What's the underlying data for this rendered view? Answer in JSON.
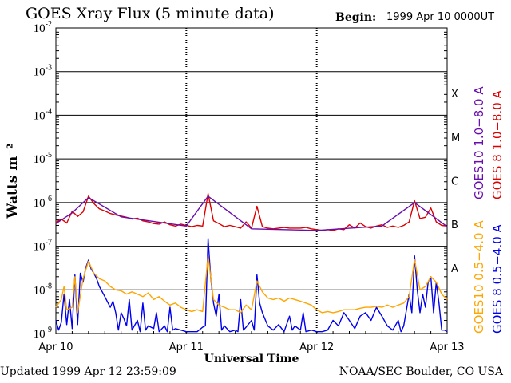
{
  "header": {
    "title": "GOES Xray Flux (5 minute data)",
    "begin_label": "Begin:",
    "begin_value": "1999 Apr 10 0000UT"
  },
  "footer": {
    "updated": "Updated 1999 Apr 12 23:59:09",
    "source": "NOAA/SEC Boulder, CO USA"
  },
  "chart_data": {
    "type": "line",
    "title": "GOES Xray Flux (5 minute data)",
    "xlabel": "Universal Time",
    "ylabel": "Watts m⁻²",
    "yscale": "log",
    "ylim": [
      1e-09,
      0.01
    ],
    "xlim": [
      0,
      72
    ],
    "x_unit": "hours since 1999 Apr 10 00:00 UT",
    "x_ticks": [
      {
        "x": 0,
        "label": "Apr 10"
      },
      {
        "x": 24,
        "label": "Apr 11"
      },
      {
        "x": 48,
        "label": "Apr 12"
      },
      {
        "x": 72,
        "label": "Apr 13"
      }
    ],
    "y_ticks": [
      {
        "exp": -2,
        "label": "10",
        "sup": "-2"
      },
      {
        "exp": -3,
        "label": "10",
        "sup": "-3"
      },
      {
        "exp": -4,
        "label": "10",
        "sup": "-4"
      },
      {
        "exp": -5,
        "label": "10",
        "sup": "-5"
      },
      {
        "exp": -6,
        "label": "10",
        "sup": "-6"
      },
      {
        "exp": -7,
        "label": "10",
        "sup": "-7"
      },
      {
        "exp": -8,
        "label": "10",
        "sup": "-8"
      },
      {
        "exp": -9,
        "label": "10",
        "sup": "-9"
      }
    ],
    "flare_classes": [
      {
        "label": "X",
        "exp": -3.5
      },
      {
        "label": "M",
        "exp": -4.5
      },
      {
        "label": "C",
        "exp": -5.5
      },
      {
        "label": "B",
        "exp": -6.5
      },
      {
        "label": "A",
        "exp": -7.5
      }
    ],
    "grid": true,
    "legend_position": "right (vertical labels)",
    "series": [
      {
        "name": "GOES 8 1.0−8.0 A",
        "color": "#dd0000",
        "points": [
          [
            0,
            3.5e-07
          ],
          [
            1,
            4.2e-07
          ],
          [
            2,
            3.4e-07
          ],
          [
            3,
            6.3e-07
          ],
          [
            4,
            4.8e-07
          ],
          [
            5,
            6.1e-07
          ],
          [
            6,
            1.4e-06
          ],
          [
            7,
            9.5e-07
          ],
          [
            8,
            7.2e-07
          ],
          [
            9,
            6.4e-07
          ],
          [
            10,
            5.6e-07
          ],
          [
            11,
            5.2e-07
          ],
          [
            12,
            4.9e-07
          ],
          [
            13,
            4.6e-07
          ],
          [
            14,
            4.2e-07
          ],
          [
            15,
            4.4e-07
          ],
          [
            16,
            3.8e-07
          ],
          [
            17,
            3.6e-07
          ],
          [
            18,
            3.3e-07
          ],
          [
            19,
            3.2e-07
          ],
          [
            20,
            3.6e-07
          ],
          [
            21,
            3.1e-07
          ],
          [
            22,
            2.9e-07
          ],
          [
            23,
            3.2e-07
          ],
          [
            24,
            3e-07
          ],
          [
            25,
            2.8e-07
          ],
          [
            26,
            3e-07
          ],
          [
            27,
            2.9e-07
          ],
          [
            28,
            1.6e-06
          ],
          [
            29,
            3.8e-07
          ],
          [
            30,
            3.3e-07
          ],
          [
            31,
            2.8e-07
          ],
          [
            32,
            3e-07
          ],
          [
            33,
            2.8e-07
          ],
          [
            34,
            2.6e-07
          ],
          [
            35,
            3.6e-07
          ],
          [
            36,
            2.6e-07
          ],
          [
            37,
            8.2e-07
          ],
          [
            38,
            2.8e-07
          ],
          [
            39,
            2.6e-07
          ],
          [
            40,
            2.5e-07
          ],
          [
            41,
            2.6e-07
          ],
          [
            42,
            2.7e-07
          ],
          [
            43,
            2.6e-07
          ],
          [
            44,
            2.6e-07
          ],
          [
            45,
            2.6e-07
          ],
          [
            46,
            2.7e-07
          ],
          [
            47,
            2.5e-07
          ],
          [
            48,
            2.4e-07
          ],
          [
            49,
            2.3e-07
          ],
          [
            50,
            2.4e-07
          ],
          [
            51,
            2.3e-07
          ],
          [
            52,
            2.5e-07
          ],
          [
            53,
            2.4e-07
          ],
          [
            54,
            3.1e-07
          ],
          [
            55,
            2.6e-07
          ],
          [
            56,
            3.4e-07
          ],
          [
            57,
            2.8e-07
          ],
          [
            58,
            2.6e-07
          ],
          [
            59,
            2.9e-07
          ],
          [
            60,
            3.1e-07
          ],
          [
            61,
            2.7e-07
          ],
          [
            62,
            2.9e-07
          ],
          [
            63,
            2.7e-07
          ],
          [
            64,
            3e-07
          ],
          [
            65,
            3.6e-07
          ],
          [
            66,
            1.1e-06
          ],
          [
            67,
            4.3e-07
          ],
          [
            68,
            4.6e-07
          ],
          [
            69,
            7.5e-07
          ],
          [
            70,
            3.6e-07
          ],
          [
            71,
            3e-07
          ],
          [
            72,
            2.9e-07
          ]
        ]
      },
      {
        "name": "GOES10 1.0−8.0 A",
        "color": "#6a0dad",
        "points": [
          [
            0,
            3.3e-07
          ],
          [
            3,
            5.8e-07
          ],
          [
            6,
            1.3e-06
          ],
          [
            12,
            4.7e-07
          ],
          [
            24,
            2.9e-07
          ],
          [
            28,
            1.4e-06
          ],
          [
            36,
            2.5e-07
          ],
          [
            48,
            2.3e-07
          ],
          [
            60,
            2.9e-07
          ],
          [
            66,
            1e-06
          ],
          [
            72,
            2.8e-07
          ]
        ]
      },
      {
        "name": "GOES 8 0.5−4.0 A",
        "color": "#0000ee",
        "points": [
          [
            0,
            2e-09
          ],
          [
            0.5,
            1.2e-09
          ],
          [
            1,
            1.8e-09
          ],
          [
            1.5,
            8e-09
          ],
          [
            2,
            1.6e-09
          ],
          [
            2.5,
            6e-09
          ],
          [
            3,
            1.3e-09
          ],
          [
            3.5,
            2.2e-08
          ],
          [
            4,
            1.6e-09
          ],
          [
            4.5,
            2.4e-08
          ],
          [
            5,
            1.5e-08
          ],
          [
            5.5,
            3.2e-08
          ],
          [
            6,
            4.8e-08
          ],
          [
            6.5,
            3e-08
          ],
          [
            7,
            2.4e-08
          ],
          [
            7.5,
            1.8e-08
          ],
          [
            8,
            1.2e-08
          ],
          [
            9,
            7e-09
          ],
          [
            10,
            4e-09
          ],
          [
            10.5,
            5.5e-09
          ],
          [
            11,
            3e-09
          ],
          [
            11.5,
            1.2e-09
          ],
          [
            12,
            3e-09
          ],
          [
            12.5,
            2.2e-09
          ],
          [
            13,
            1.5e-09
          ],
          [
            13.5,
            6e-09
          ],
          [
            14,
            1.2e-09
          ],
          [
            15,
            2e-09
          ],
          [
            15.5,
            1.1e-09
          ],
          [
            16,
            5e-09
          ],
          [
            16.5,
            1.2e-09
          ],
          [
            17,
            1.5e-09
          ],
          [
            18,
            1.3e-09
          ],
          [
            18.5,
            3e-09
          ],
          [
            19,
            1.1e-09
          ],
          [
            20,
            1.5e-09
          ],
          [
            20.5,
            1.1e-09
          ],
          [
            21,
            4e-09
          ],
          [
            21.5,
            1.2e-09
          ],
          [
            22,
            1.3e-09
          ],
          [
            23,
            1.2e-09
          ],
          [
            24,
            1.1e-09
          ],
          [
            25,
            1.1e-09
          ],
          [
            26,
            1.1e-09
          ],
          [
            27,
            1.4e-09
          ],
          [
            27.5,
            1.5e-09
          ],
          [
            28,
            1.5e-07
          ],
          [
            28.5,
            1.8e-08
          ],
          [
            29,
            5e-09
          ],
          [
            29.5,
            2.5e-09
          ],
          [
            30,
            8e-09
          ],
          [
            30.5,
            1.2e-09
          ],
          [
            31,
            1.5e-09
          ],
          [
            32,
            1.1e-09
          ],
          [
            33,
            1.2e-09
          ],
          [
            33.5,
            1.1e-09
          ],
          [
            34,
            6e-09
          ],
          [
            34.5,
            1.2e-09
          ],
          [
            35,
            1.4e-09
          ],
          [
            36,
            2e-09
          ],
          [
            36.5,
            1.2e-09
          ],
          [
            37,
            2.2e-08
          ],
          [
            37.5,
            5e-09
          ],
          [
            38,
            3e-09
          ],
          [
            39,
            1.5e-09
          ],
          [
            40,
            1.2e-09
          ],
          [
            41,
            1.6e-09
          ],
          [
            42,
            1.1e-09
          ],
          [
            43,
            2.5e-09
          ],
          [
            43.5,
            1.2e-09
          ],
          [
            44,
            1.5e-09
          ],
          [
            45,
            1.2e-09
          ],
          [
            45.5,
            3e-09
          ],
          [
            46,
            1.1e-09
          ],
          [
            47,
            1.2e-09
          ],
          [
            48,
            1.1e-09
          ],
          [
            49,
            1.1e-09
          ],
          [
            50,
            1.2e-09
          ],
          [
            51,
            2e-09
          ],
          [
            52,
            1.5e-09
          ],
          [
            53,
            3e-09
          ],
          [
            54,
            2e-09
          ],
          [
            55,
            1.3e-09
          ],
          [
            56,
            2.5e-09
          ],
          [
            57,
            3e-09
          ],
          [
            58,
            2e-09
          ],
          [
            59,
            4e-09
          ],
          [
            60,
            2.5e-09
          ],
          [
            61,
            1.5e-09
          ],
          [
            62,
            1.2e-09
          ],
          [
            63,
            2e-09
          ],
          [
            63.5,
            1.1e-09
          ],
          [
            64,
            1.5e-09
          ],
          [
            65,
            8e-09
          ],
          [
            65.5,
            3e-09
          ],
          [
            66,
            6e-08
          ],
          [
            66.5,
            1e-08
          ],
          [
            67,
            3e-09
          ],
          [
            67.5,
            8e-09
          ],
          [
            68,
            4e-09
          ],
          [
            68.5,
            1.5e-08
          ],
          [
            69,
            2e-08
          ],
          [
            69.5,
            3e-09
          ],
          [
            70,
            1.5e-08
          ],
          [
            70.5,
            5e-09
          ],
          [
            71,
            1.2e-09
          ],
          [
            71.5,
            1.2e-09
          ],
          [
            72,
            1.1e-09
          ]
        ]
      },
      {
        "name": "GOES10 0.5−4.0 A",
        "color": "#ffa500",
        "points": [
          [
            0,
            4e-09
          ],
          [
            1,
            6e-09
          ],
          [
            1.5,
            1.2e-08
          ],
          [
            2,
            3.5e-09
          ],
          [
            3,
            4e-09
          ],
          [
            3.5,
            2e-08
          ],
          [
            4,
            3e-09
          ],
          [
            5,
            1.8e-08
          ],
          [
            6,
            4.5e-08
          ],
          [
            7,
            2.4e-08
          ],
          [
            8,
            1.8e-08
          ],
          [
            9,
            1.6e-08
          ],
          [
            10,
            1.2e-08
          ],
          [
            11,
            1e-08
          ],
          [
            12,
            9.5e-09
          ],
          [
            13,
            8e-09
          ],
          [
            14,
            9e-09
          ],
          [
            15,
            8e-09
          ],
          [
            16,
            7e-09
          ],
          [
            17,
            8.5e-09
          ],
          [
            18,
            6e-09
          ],
          [
            19,
            7e-09
          ],
          [
            20,
            5.5e-09
          ],
          [
            21,
            4.5e-09
          ],
          [
            22,
            5e-09
          ],
          [
            23,
            4e-09
          ],
          [
            24,
            3.5e-09
          ],
          [
            25,
            3.2e-09
          ],
          [
            26,
            3.5e-09
          ],
          [
            27,
            3.2e-09
          ],
          [
            28,
            6e-08
          ],
          [
            29,
            6e-09
          ],
          [
            30,
            4.5e-09
          ],
          [
            31,
            4e-09
          ],
          [
            32,
            3.5e-09
          ],
          [
            33,
            3.5e-09
          ],
          [
            34,
            3e-09
          ],
          [
            35,
            4.5e-09
          ],
          [
            36,
            3.5e-09
          ],
          [
            37,
            1.6e-08
          ],
          [
            38,
            9e-09
          ],
          [
            39,
            6.5e-09
          ],
          [
            40,
            6e-09
          ],
          [
            41,
            6.5e-09
          ],
          [
            42,
            5.5e-09
          ],
          [
            43,
            6.5e-09
          ],
          [
            44,
            6e-09
          ],
          [
            45,
            5.5e-09
          ],
          [
            46,
            5e-09
          ],
          [
            47,
            4.5e-09
          ],
          [
            48,
            3.5e-09
          ],
          [
            49,
            3e-09
          ],
          [
            50,
            3.2e-09
          ],
          [
            51,
            3e-09
          ],
          [
            52,
            3.2e-09
          ],
          [
            53,
            3.5e-09
          ],
          [
            54,
            3.5e-09
          ],
          [
            55,
            3.5e-09
          ],
          [
            56,
            3.8e-09
          ],
          [
            57,
            4e-09
          ],
          [
            58,
            4e-09
          ],
          [
            59,
            4.2e-09
          ],
          [
            60,
            4e-09
          ],
          [
            61,
            4.5e-09
          ],
          [
            62,
            4e-09
          ],
          [
            63,
            4.5e-09
          ],
          [
            64,
            5e-09
          ],
          [
            65,
            7e-09
          ],
          [
            66,
            5e-08
          ],
          [
            67,
            1e-08
          ],
          [
            68,
            1.2e-08
          ],
          [
            69,
            2e-08
          ],
          [
            70,
            1.5e-08
          ],
          [
            71,
            8e-09
          ],
          [
            72,
            6e-09
          ]
        ]
      }
    ],
    "right_labels": [
      {
        "text": "GOES10 1.0−8.0 A",
        "color": "#6a0dad"
      },
      {
        "text": "GOES 8 1.0−8.0 A",
        "color": "#dd0000"
      },
      {
        "text": "GOES10 0.5−4.0 A",
        "color": "#ffa500"
      },
      {
        "text": "GOES 8 0.5−4.0 A",
        "color": "#0000ee"
      }
    ]
  }
}
